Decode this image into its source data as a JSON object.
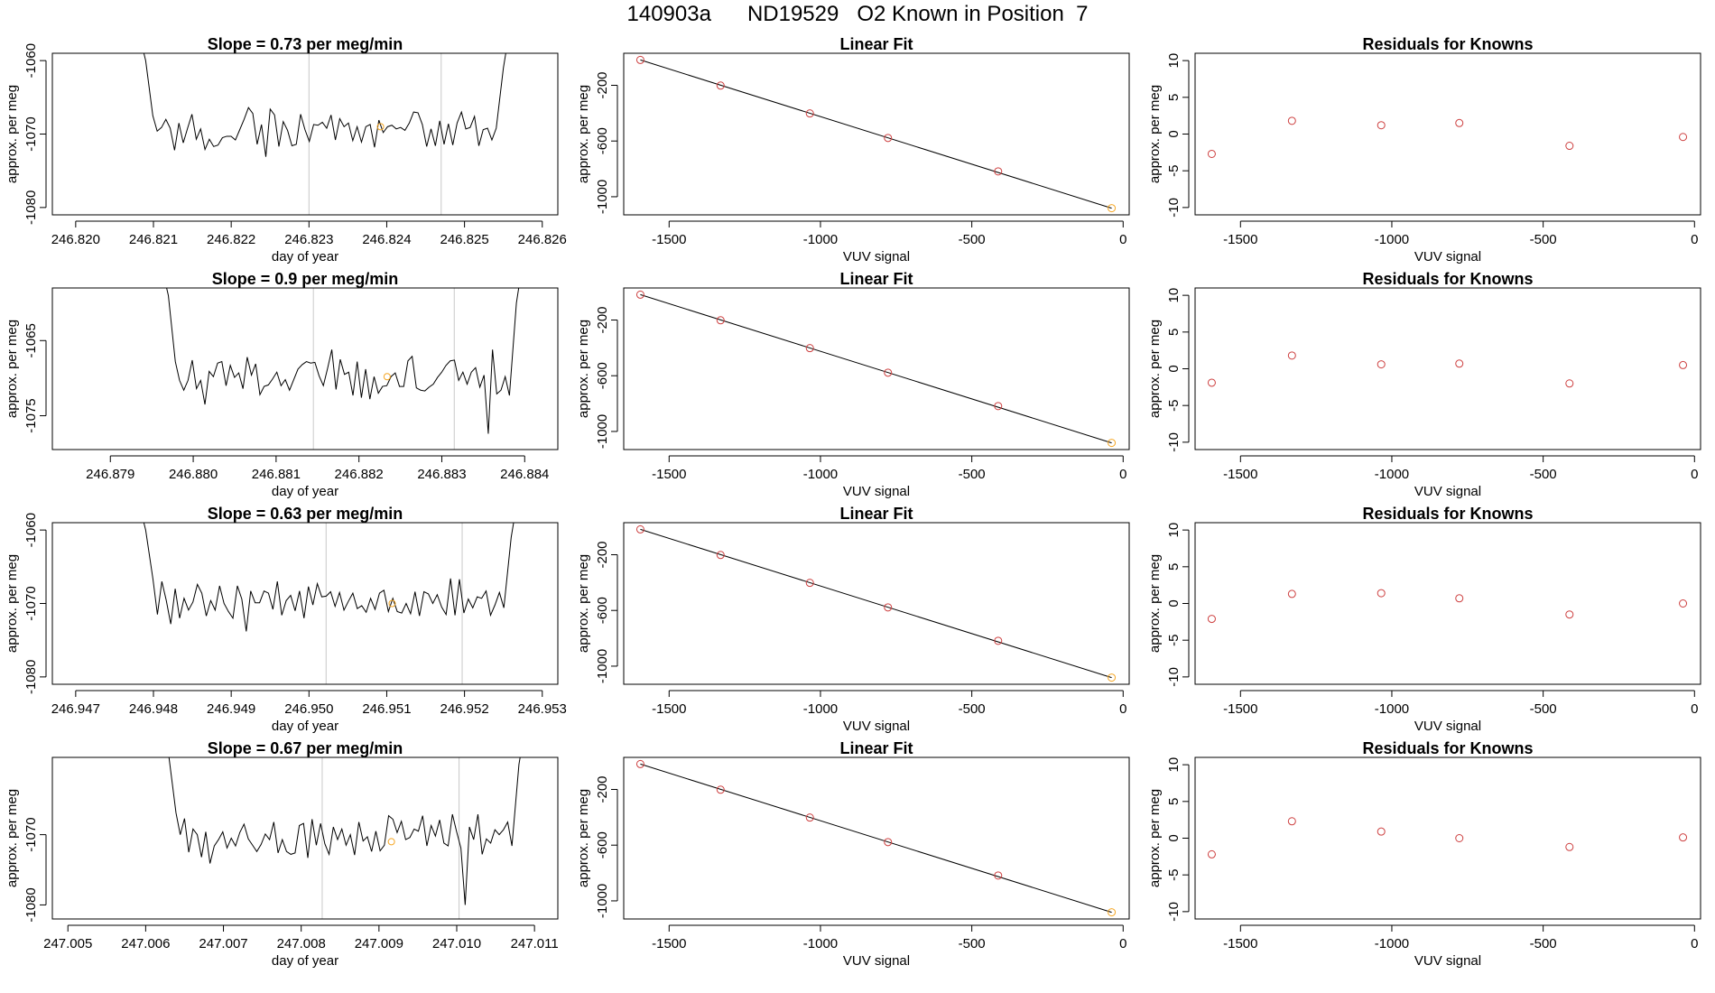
{
  "title": "140903a      ND19529   O2 Known in Position  7",
  "colors": {
    "line": "#000000",
    "known_point": "#cd3f3f",
    "highlight_point": "#f5a623",
    "vline": "#c8c8c8",
    "frame": "#000000"
  },
  "chart_data": [
    {
      "type": "line",
      "title": "Slope =  0.73  per meg/min",
      "xlabel": "day of year",
      "ylabel": "approx. per meg",
      "xlim": [
        246.8197,
        246.8262
      ],
      "ylim": [
        -1081,
        -1059
      ],
      "x_ticks": [
        246.82,
        246.821,
        246.822,
        246.823,
        246.824,
        246.825,
        246.826
      ],
      "x_tick_labels": [
        "246.820",
        "246.821",
        "246.822",
        "246.823",
        "246.824",
        "246.825",
        "246.826"
      ],
      "y_ticks": [
        -1060,
        -1070,
        -1080
      ],
      "y_tick_labels": [
        "-1060",
        "-1070",
        "-1080"
      ],
      "vlines": [
        246.823,
        246.8247
      ],
      "x_start": 246.8209,
      "x_end": 246.8255,
      "baseline": -1070,
      "edge_left": -1058,
      "edge_right": -1058,
      "series": [
        {
          "values": [
            -1067.5,
            -1069.6,
            -1069.1,
            -1068.0,
            -1069.2,
            -1072.2,
            -1068.5,
            -1071.2,
            -1069.2,
            -1067.3,
            -1070.7,
            -1069.3,
            -1072.1,
            -1070.7,
            -1071.7,
            -1071.5,
            -1070.5,
            -1070.3,
            -1070.3,
            -1070.8,
            -1069.4,
            -1068.0,
            -1066.4,
            -1067.2,
            -1071.4,
            -1068.7,
            -1073.1,
            -1066.6,
            -1067.4,
            -1071.7,
            -1068.3,
            -1069.5,
            -1071.6,
            -1071.4,
            -1067.3,
            -1069.4,
            -1071.0,
            -1068.7,
            -1068.8,
            -1068.4,
            -1069.2,
            -1067.4,
            -1070.8,
            -1067.9,
            -1069.0,
            -1068.5,
            -1070.9,
            -1069.0,
            -1071.1,
            -1069.0,
            -1068.7,
            -1071.8,
            -1068.1,
            -1069.8,
            -1069.0,
            -1068.8,
            -1069.3,
            -1069.1,
            -1069.5,
            -1068.5,
            -1067.0,
            -1067.1,
            -1068.7,
            -1071.7,
            -1069.3,
            -1071.6,
            -1068.2,
            -1071.4,
            -1068.6,
            -1071.5,
            -1068.5,
            -1067.0,
            -1069.3,
            -1069.1,
            -1067.6,
            -1071.6,
            -1069.4,
            -1069.2,
            -1070.8,
            -1069.2
          ]
        }
      ],
      "highlight": {
        "x": 246.82392,
        "y": -1069
      }
    },
    {
      "type": "scatter",
      "title": "Linear Fit",
      "xlabel": "VUV signal",
      "ylabel": "approx. per meg",
      "xlim": [
        -1650,
        20
      ],
      "ylim": [
        -1130,
        30
      ],
      "x_ticks": [
        -1500,
        -1000,
        -500,
        0
      ],
      "x_tick_labels": [
        "-1500",
        "-1000",
        "-500",
        "0"
      ],
      "y_ticks": [
        -200,
        -600,
        -1000
      ],
      "y_tick_labels": [
        "-200",
        "-600",
        "-1000"
      ],
      "points": [
        [
          -1595,
          -18
        ],
        [
          -1330,
          -202
        ],
        [
          -1035,
          -402
        ],
        [
          -777,
          -578
        ],
        [
          -413,
          -818
        ],
        [
          -38,
          -1082
        ]
      ],
      "fit": [
        [
          -1595,
          -18
        ],
        [
          -38,
          -1082
        ]
      ],
      "highlight_last": true
    },
    {
      "type": "scatter",
      "title": "Residuals for Knowns",
      "xlabel": "VUV signal",
      "ylabel": "approx. per meg",
      "xlim": [
        -1650,
        20
      ],
      "ylim": [
        -11,
        11
      ],
      "x_ticks": [
        -1500,
        -1000,
        -500,
        0
      ],
      "x_tick_labels": [
        "-1500",
        "-1000",
        "-500",
        "0"
      ],
      "y_ticks": [
        10,
        5,
        0,
        -5,
        -10
      ],
      "y_tick_labels": [
        "10",
        "5",
        "0",
        "-5",
        "-10"
      ],
      "points": [
        [
          -1595,
          -2.7
        ],
        [
          -1330,
          1.8
        ],
        [
          -1035,
          1.2
        ],
        [
          -777,
          1.5
        ],
        [
          -413,
          -1.6
        ],
        [
          -38,
          -0.4
        ]
      ]
    },
    {
      "type": "line",
      "title": "Slope =  0.9  per meg/min",
      "xlabel": "day of year",
      "ylabel": "approx. per meg",
      "xlim": [
        246.8783,
        246.8844
      ],
      "ylim": [
        -1079.5,
        -1058
      ],
      "x_ticks": [
        246.879,
        246.88,
        246.881,
        246.882,
        246.883,
        246.884
      ],
      "x_tick_labels": [
        "246.879",
        "246.880",
        "246.881",
        "246.882",
        "246.883",
        "246.884"
      ],
      "y_ticks": [
        -1065,
        -1075
      ],
      "y_tick_labels": [
        "-1065",
        "-1075"
      ],
      "vlines": [
        246.88145,
        246.88315
      ],
      "x_start": 246.8797,
      "x_end": 246.8839,
      "baseline": -1070,
      "edge_left": -1057,
      "edge_right": -1057,
      "series": [
        {
          "values": [
            -1067.8,
            -1070.3,
            -1071.6,
            -1070.3,
            -1067.6,
            -1071.4,
            -1070.3,
            -1073.5,
            -1069.1,
            -1069.8,
            -1068.0,
            -1067.8,
            -1071.0,
            -1068.3,
            -1069.9,
            -1069.3,
            -1071.4,
            -1067.2,
            -1069.6,
            -1068.1,
            -1072.2,
            -1071.1,
            -1070.9,
            -1070.1,
            -1069.2,
            -1071.0,
            -1070.2,
            -1071.6,
            -1070.2,
            -1068.8,
            -1068.2,
            -1067.8,
            -1068.0,
            -1067.9,
            -1069.7,
            -1071.0,
            -1068.7,
            -1066.2,
            -1071.5,
            -1067.5,
            -1069.5,
            -1069.2,
            -1072.3,
            -1067.8,
            -1072.6,
            -1068.8,
            -1072.8,
            -1069.8,
            -1072.0,
            -1071.1,
            -1071.0,
            -1069.8,
            -1069.3,
            -1071.1,
            -1071.1,
            -1067.7,
            -1067.1,
            -1071.3,
            -1071.6,
            -1071.7,
            -1071.2,
            -1070.8,
            -1069.9,
            -1069.2,
            -1068.3,
            -1067.7,
            -1067.6,
            -1070.3,
            -1069.2,
            -1070.8,
            -1069.2,
            -1068.6,
            -1071.2,
            -1069.6,
            -1077.4,
            -1066.2,
            -1072.1,
            -1071.6,
            -1069.8,
            -1072.3
          ]
        }
      ],
      "highlight": {
        "x": 246.88234,
        "y": -1069.8
      }
    },
    {
      "type": "scatter",
      "title": "Linear Fit",
      "xlabel": "VUV signal",
      "ylabel": "approx. per meg",
      "xlim": [
        -1650,
        20
      ],
      "ylim": [
        -1130,
        30
      ],
      "x_ticks": [
        -1500,
        -1000,
        -500,
        0
      ],
      "x_tick_labels": [
        "-1500",
        "-1000",
        "-500",
        "0"
      ],
      "y_ticks": [
        -200,
        -600,
        -1000
      ],
      "y_tick_labels": [
        "-200",
        "-600",
        "-1000"
      ],
      "points": [
        [
          -1595,
          -18
        ],
        [
          -1330,
          -202
        ],
        [
          -1035,
          -402
        ],
        [
          -777,
          -578
        ],
        [
          -413,
          -818
        ],
        [
          -38,
          -1082
        ]
      ],
      "fit": [
        [
          -1595,
          -18
        ],
        [
          -38,
          -1082
        ]
      ],
      "highlight_last": true
    },
    {
      "type": "scatter",
      "title": "Residuals for Knowns",
      "xlabel": "VUV signal",
      "ylabel": "approx. per meg",
      "xlim": [
        -1650,
        20
      ],
      "ylim": [
        -11,
        11
      ],
      "x_ticks": [
        -1500,
        -1000,
        -500,
        0
      ],
      "x_tick_labels": [
        "-1500",
        "-1000",
        "-500",
        "0"
      ],
      "y_ticks": [
        10,
        5,
        0,
        -5,
        -10
      ],
      "y_tick_labels": [
        "10",
        "5",
        "0",
        "-5",
        "-10"
      ],
      "points": [
        [
          -1595,
          -1.9
        ],
        [
          -1330,
          1.8
        ],
        [
          -1035,
          0.6
        ],
        [
          -777,
          0.7
        ],
        [
          -413,
          -2.0
        ],
        [
          -38,
          0.5
        ]
      ]
    },
    {
      "type": "line",
      "title": "Slope =  0.63  per meg/min",
      "xlabel": "day of year",
      "ylabel": "approx. per meg",
      "xlim": [
        246.9467,
        246.9532
      ],
      "ylim": [
        -1081,
        -1059
      ],
      "x_ticks": [
        246.947,
        246.948,
        246.949,
        246.95,
        246.951,
        246.952,
        246.953
      ],
      "x_tick_labels": [
        "246.947",
        "246.948",
        "246.949",
        "246.950",
        "246.951",
        "246.952",
        "246.953"
      ],
      "y_ticks": [
        -1060,
        -1070,
        -1080
      ],
      "y_tick_labels": [
        "-1060",
        "-1070",
        "-1080"
      ],
      "vlines": [
        246.95022,
        246.95197
      ],
      "x_start": 246.9479,
      "x_end": 246.9526,
      "baseline": -1070,
      "edge_left": -1058,
      "edge_right": -1058,
      "series": [
        {
          "values": [
            -1066.7,
            -1071.5,
            -1067.0,
            -1069.6,
            -1072.8,
            -1068.0,
            -1072.0,
            -1069.3,
            -1070.9,
            -1069.8,
            -1067.4,
            -1068.6,
            -1071.7,
            -1069.6,
            -1070.9,
            -1067.6,
            -1070.0,
            -1071.1,
            -1072.0,
            -1067.6,
            -1069.4,
            -1073.8,
            -1068.3,
            -1069.9,
            -1069.9,
            -1068.3,
            -1068.6,
            -1070.8,
            -1067.0,
            -1071.6,
            -1069.6,
            -1068.9,
            -1071.0,
            -1068.3,
            -1072.0,
            -1067.7,
            -1070.2,
            -1067.3,
            -1069.1,
            -1069.0,
            -1068.4,
            -1070.4,
            -1068.5,
            -1070.9,
            -1069.7,
            -1068.6,
            -1070.7,
            -1070.3,
            -1071.2,
            -1069.3,
            -1070.8,
            -1068.6,
            -1068.2,
            -1071.1,
            -1069.3,
            -1071.1,
            -1071.3,
            -1070.0,
            -1071.4,
            -1068.4,
            -1071.7,
            -1068.4,
            -1068.7,
            -1070.0,
            -1068.8,
            -1070.5,
            -1071.5,
            -1066.6,
            -1071.6,
            -1066.7,
            -1071.3,
            -1069.4,
            -1070.6,
            -1069.1,
            -1069.3,
            -1068.3,
            -1071.6,
            -1070.2,
            -1068.5,
            -1070.6
          ]
        }
      ],
      "highlight": {
        "x": 246.95107,
        "y": -1070
      }
    },
    {
      "type": "scatter",
      "title": "Linear Fit",
      "xlabel": "VUV signal",
      "ylabel": "approx. per meg",
      "xlim": [
        -1650,
        20
      ],
      "ylim": [
        -1130,
        30
      ],
      "x_ticks": [
        -1500,
        -1000,
        -500,
        0
      ],
      "x_tick_labels": [
        "-1500",
        "-1000",
        "-500",
        "0"
      ],
      "y_ticks": [
        -200,
        -600,
        -1000
      ],
      "y_tick_labels": [
        "-200",
        "-600",
        "-1000"
      ],
      "points": [
        [
          -1595,
          -18
        ],
        [
          -1330,
          -202
        ],
        [
          -1035,
          -402
        ],
        [
          -777,
          -578
        ],
        [
          -413,
          -818
        ],
        [
          -38,
          -1082
        ]
      ],
      "fit": [
        [
          -1595,
          -18
        ],
        [
          -38,
          -1082
        ]
      ],
      "highlight_last": true
    },
    {
      "type": "scatter",
      "title": "Residuals for Knowns",
      "xlabel": "VUV signal",
      "ylabel": "approx. per meg",
      "xlim": [
        -1650,
        20
      ],
      "ylim": [
        -11,
        11
      ],
      "x_ticks": [
        -1500,
        -1000,
        -500,
        0
      ],
      "x_tick_labels": [
        "-1500",
        "-1000",
        "-500",
        "0"
      ],
      "y_ticks": [
        10,
        5,
        0,
        -5,
        -10
      ],
      "y_tick_labels": [
        "10",
        "5",
        "0",
        "-5",
        "-10"
      ],
      "points": [
        [
          -1595,
          -2.1
        ],
        [
          -1330,
          1.3
        ],
        [
          -1035,
          1.4
        ],
        [
          -777,
          0.7
        ],
        [
          -413,
          -1.5
        ],
        [
          -38,
          0.0
        ]
      ]
    },
    {
      "type": "line",
      "title": "Slope =  0.67  per meg/min",
      "xlabel": "day of year",
      "ylabel": "approx. per meg",
      "xlim": [
        247.0048,
        247.0113
      ],
      "ylim": [
        -1082,
        -1059
      ],
      "x_ticks": [
        247.005,
        247.006,
        247.007,
        247.008,
        247.009,
        247.01,
        247.011
      ],
      "x_tick_labels": [
        "247.005",
        "247.006",
        "247.007",
        "247.008",
        "247.009",
        "247.010",
        "247.011"
      ],
      "y_ticks": [
        -1070,
        -1080
      ],
      "y_tick_labels": [
        "-1070",
        "-1080"
      ],
      "vlines": [
        247.00827,
        247.01003
      ],
      "x_start": 247.0063,
      "x_end": 247.0108,
      "baseline": -1070,
      "edge_left": -1057,
      "edge_right": -1057,
      "series": [
        {
          "values": [
            -1066.9,
            -1070.0,
            -1067.7,
            -1072.5,
            -1069.2,
            -1070.0,
            -1073.2,
            -1069.6,
            -1074.1,
            -1071.6,
            -1070.7,
            -1069.6,
            -1071.9,
            -1070.5,
            -1071.6,
            -1069.7,
            -1068.5,
            -1070.6,
            -1071.5,
            -1072.4,
            -1071.4,
            -1069.9,
            -1070.7,
            -1068.2,
            -1072.6,
            -1070.7,
            -1072.4,
            -1072.8,
            -1072.6,
            -1068.7,
            -1068.4,
            -1073.3,
            -1067.8,
            -1071.5,
            -1068.4,
            -1071.3,
            -1072.8,
            -1068.9,
            -1070.7,
            -1069.2,
            -1071.5,
            -1070.0,
            -1072.9,
            -1068.2,
            -1070.9,
            -1070.3,
            -1072.4,
            -1069.5,
            -1072.3,
            -1071.5,
            -1067.3,
            -1067.8,
            -1069.7,
            -1068.1,
            -1070.7,
            -1070.4,
            -1069.2,
            -1069.5,
            -1067.3,
            -1071.6,
            -1068.7,
            -1070.2,
            -1067.9,
            -1071.2,
            -1071.6,
            -1067.1,
            -1069.6,
            -1071.9,
            -1080.0,
            -1068.9,
            -1070.7,
            -1067.1,
            -1072.8,
            -1070.6,
            -1071.2,
            -1069.3,
            -1070.0,
            -1069.3,
            -1068.2,
            -1071.6
          ]
        }
      ],
      "highlight": {
        "x": 247.00916,
        "y": -1071
      }
    },
    {
      "type": "scatter",
      "title": "Linear Fit",
      "xlabel": "VUV signal",
      "ylabel": "approx. per meg",
      "xlim": [
        -1650,
        20
      ],
      "ylim": [
        -1130,
        30
      ],
      "x_ticks": [
        -1500,
        -1000,
        -500,
        0
      ],
      "x_tick_labels": [
        "-1500",
        "-1000",
        "-500",
        "0"
      ],
      "y_ticks": [
        -200,
        -600,
        -1000
      ],
      "y_tick_labels": [
        "-200",
        "-600",
        "-1000"
      ],
      "points": [
        [
          -1595,
          -18
        ],
        [
          -1330,
          -202
        ],
        [
          -1035,
          -402
        ],
        [
          -777,
          -578
        ],
        [
          -413,
          -818
        ],
        [
          -38,
          -1082
        ]
      ],
      "fit": [
        [
          -1595,
          -18
        ],
        [
          -38,
          -1082
        ]
      ],
      "highlight_last": true
    },
    {
      "type": "scatter",
      "title": "Residuals for Knowns",
      "xlabel": "VUV signal",
      "ylabel": "approx. per meg",
      "xlim": [
        -1650,
        20
      ],
      "ylim": [
        -11,
        11
      ],
      "x_ticks": [
        -1500,
        -1000,
        -500,
        0
      ],
      "x_tick_labels": [
        "-1500",
        "-1000",
        "-500",
        "0"
      ],
      "y_ticks": [
        10,
        5,
        0,
        -5,
        -10
      ],
      "y_tick_labels": [
        "10",
        "5",
        "0",
        "-5",
        "-10"
      ],
      "points": [
        [
          -1595,
          -2.2
        ],
        [
          -1330,
          2.3
        ],
        [
          -1035,
          0.9
        ],
        [
          -777,
          0.0
        ],
        [
          -413,
          -1.2
        ],
        [
          -38,
          0.1
        ]
      ]
    }
  ]
}
